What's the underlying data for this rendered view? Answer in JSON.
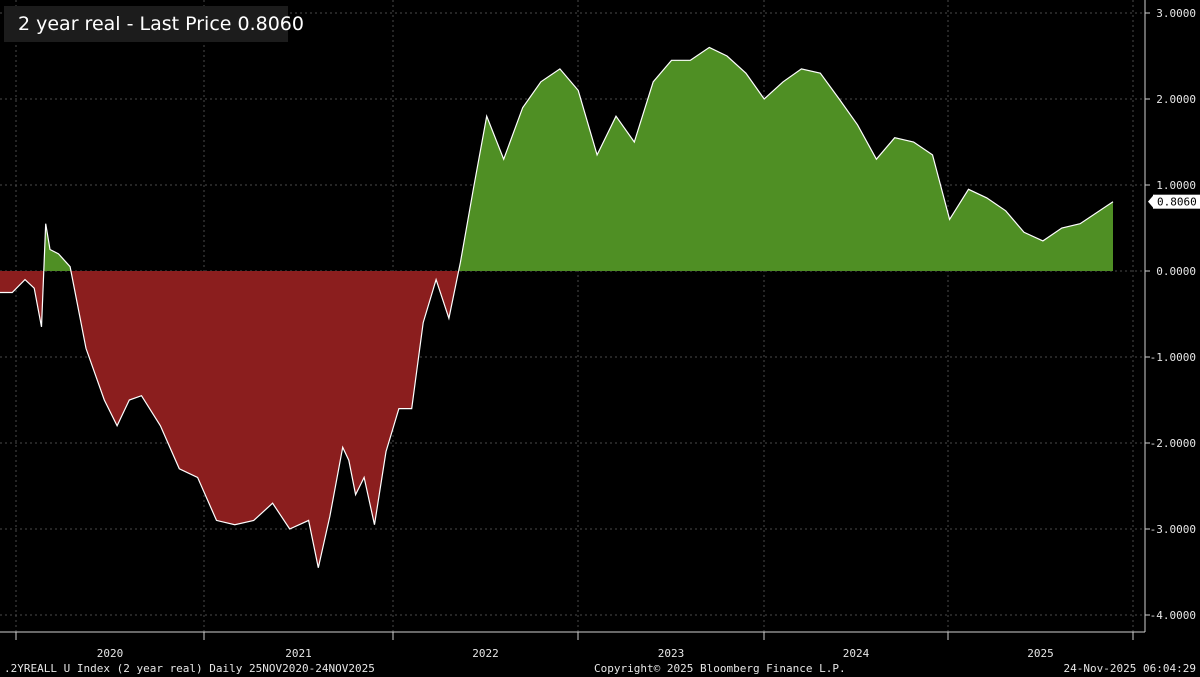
{
  "legend": {
    "label": "2 year real - Last Price 0.8060"
  },
  "footer": {
    "left": ".2YREALL U Index (2 year real) Daily 25NOV2020-24NOV2025",
    "center": "Copyright© 2025 Bloomberg Finance L.P.",
    "right": "24-Nov-2025 06:04:29"
  },
  "colors": {
    "background": "#000000",
    "positive_fill": "#4f8f24",
    "negative_fill": "#8b1e1e",
    "line": "#ffffff",
    "grid": "#4a4a4a"
  },
  "chart_data": {
    "type": "area",
    "title": "",
    "xlabel": "",
    "ylabel": "",
    "x_tick_labels": [
      "2020",
      "2021",
      "2022",
      "2023",
      "2024",
      "2025"
    ],
    "y_tick_labels": [
      "3.0000",
      "2.0000",
      "1.0000",
      "0.0000",
      "-1.0000",
      "-2.0000",
      "-3.0000",
      "-4.0000"
    ],
    "ylim": [
      -4.0,
      3.0
    ],
    "xlim": [
      "2020-11-25",
      "2025-11-24"
    ],
    "grid": true,
    "last_value_label": "0.8060",
    "series": [
      {
        "x": [
          "2020-11-25",
          "2020-12-15",
          "2021-01-05",
          "2021-01-20",
          "2021-02-01",
          "2021-02-08",
          "2021-02-15",
          "2021-03-01",
          "2021-03-20",
          "2021-04-15",
          "2021-05-15",
          "2021-06-05",
          "2021-06-25",
          "2021-07-15",
          "2021-08-15",
          "2021-09-15",
          "2021-10-15",
          "2021-11-15",
          "2021-12-15",
          "2022-01-15",
          "2022-02-15",
          "2022-03-15",
          "2022-04-15",
          "2022-05-01",
          "2022-05-20",
          "2022-06-10",
          "2022-06-20",
          "2022-07-01",
          "2022-07-15",
          "2022-08-01",
          "2022-08-20",
          "2022-09-10",
          "2022-10-01",
          "2022-10-20",
          "2022-11-10",
          "2022-12-01",
          "2022-12-20",
          "2023-01-10",
          "2023-02-01",
          "2023-03-01",
          "2023-04-01",
          "2023-05-01",
          "2023-06-01",
          "2023-07-01",
          "2023-08-01",
          "2023-09-01",
          "2023-10-01",
          "2023-11-01",
          "2023-12-01",
          "2024-01-01",
          "2024-02-01",
          "2024-03-01",
          "2024-04-01",
          "2024-05-01",
          "2024-06-01",
          "2024-07-01",
          "2024-08-01",
          "2024-09-01",
          "2024-10-01",
          "2024-11-01",
          "2024-12-01",
          "2025-01-01",
          "2025-02-01",
          "2025-03-01",
          "2025-04-01",
          "2025-05-01",
          "2025-06-01",
          "2025-07-01",
          "2025-08-01",
          "2025-09-01",
          "2025-10-01",
          "2025-11-24"
        ],
        "values": [
          -0.25,
          -0.25,
          -0.1,
          -0.2,
          -0.65,
          0.55,
          0.25,
          0.2,
          0.05,
          -0.9,
          -1.5,
          -1.8,
          -1.5,
          -1.45,
          -1.8,
          -2.3,
          -2.4,
          -2.9,
          -2.95,
          -2.9,
          -2.7,
          -3.0,
          -2.9,
          -3.45,
          -2.85,
          -2.05,
          -2.2,
          -2.6,
          -2.4,
          -2.95,
          -2.1,
          -1.6,
          -1.6,
          -0.6,
          -0.1,
          -0.55,
          0.1,
          0.95,
          1.8,
          1.3,
          1.9,
          2.2,
          2.35,
          2.1,
          1.35,
          1.8,
          1.5,
          2.2,
          2.45,
          2.45,
          2.6,
          2.5,
          2.3,
          2.0,
          2.2,
          2.35,
          2.3,
          2.0,
          1.7,
          1.3,
          1.55,
          1.5,
          1.35,
          0.6,
          0.95,
          0.85,
          0.7,
          0.45,
          0.35,
          0.5,
          0.55,
          0.806
        ]
      }
    ]
  }
}
